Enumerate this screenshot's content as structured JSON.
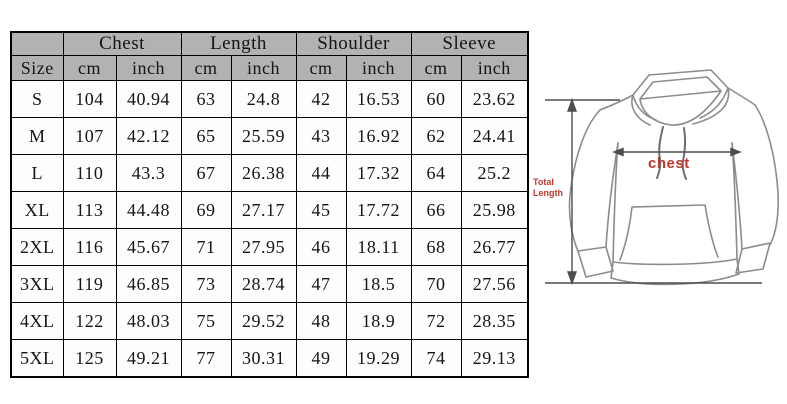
{
  "page": {
    "background": "#ffffff"
  },
  "chart_data": {
    "type": "table",
    "row_header_label": "Size",
    "column_groups": [
      {
        "label": "Chest",
        "units": [
          "cm",
          "inch"
        ]
      },
      {
        "label": "Length",
        "units": [
          "cm",
          "inch"
        ]
      },
      {
        "label": "Shoulder",
        "units": [
          "cm",
          "inch"
        ]
      },
      {
        "label": "Sleeve",
        "units": [
          "cm",
          "inch"
        ]
      }
    ],
    "sizes": [
      "S",
      "M",
      "L",
      "XL",
      "2XL",
      "3XL",
      "4XL",
      "5XL"
    ],
    "rows": [
      [
        104,
        40.94,
        63,
        "24.8",
        42,
        16.53,
        60,
        23.62
      ],
      [
        107,
        42.12,
        65,
        25.59,
        43,
        16.92,
        62,
        24.41
      ],
      [
        110,
        "43.3",
        67,
        26.38,
        44,
        17.32,
        64,
        "25.2"
      ],
      [
        113,
        44.48,
        69,
        27.17,
        45,
        17.72,
        66,
        25.98
      ],
      [
        116,
        45.67,
        71,
        27.95,
        46,
        18.11,
        68,
        26.77
      ],
      [
        119,
        46.85,
        73,
        28.74,
        47,
        "18.5",
        70,
        27.56
      ],
      [
        122,
        48.03,
        75,
        29.52,
        48,
        "18.9",
        72,
        28.35
      ],
      [
        125,
        49.21,
        77,
        30.31,
        49,
        19.29,
        74,
        29.13
      ]
    ],
    "header_bg": "#b2b2b2"
  },
  "diagram": {
    "total_length_label_line1": "Total",
    "total_length_label_line2": "Length",
    "chest_label": "chest",
    "label_color": "#c0392b",
    "outline_color": "#8c8c8c",
    "measure_line_color": "#4d4d4d"
  }
}
